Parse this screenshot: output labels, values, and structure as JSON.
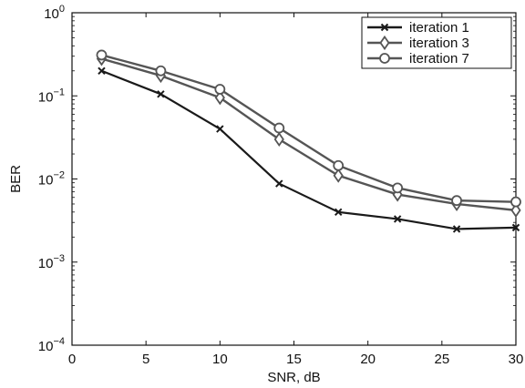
{
  "chart_data": {
    "type": "line",
    "xlabel": "SNR, dB",
    "ylabel": "BER",
    "xlim": [
      0,
      30
    ],
    "ylim": [
      0.0001,
      1
    ],
    "yscale": "log",
    "xticks": [
      0,
      5,
      10,
      15,
      20,
      25,
      30
    ],
    "yticks": [
      {
        "value": 1,
        "base": "10",
        "exp": "0"
      },
      {
        "value": 0.1,
        "base": "10",
        "exp": "−1"
      },
      {
        "value": 0.01,
        "base": "10",
        "exp": "−2"
      },
      {
        "value": 0.001,
        "base": "10",
        "exp": "−3"
      },
      {
        "value": 0.0001,
        "base": "10",
        "exp": "−4"
      }
    ],
    "grid": false,
    "legend_position": "top-right",
    "x": [
      2,
      6,
      10,
      14,
      18,
      22,
      26,
      30
    ],
    "series": [
      {
        "name": "iteration 1",
        "marker": "x",
        "color": "#1a1a1a",
        "values": [
          0.2,
          0.105,
          0.04,
          0.0088,
          0.004,
          0.0033,
          0.0025,
          0.0026
        ]
      },
      {
        "name": "iteration 3",
        "marker": "diamond",
        "color": "#555555",
        "values": [
          0.28,
          0.175,
          0.095,
          0.03,
          0.011,
          0.0065,
          0.005,
          0.0042
        ]
      },
      {
        "name": "iteration 7",
        "marker": "circle",
        "color": "#555555",
        "values": [
          0.31,
          0.2,
          0.12,
          0.041,
          0.0145,
          0.0078,
          0.0055,
          0.0053
        ]
      }
    ]
  }
}
